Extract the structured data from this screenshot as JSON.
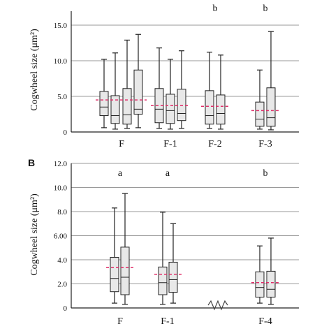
{
  "chart_data": [
    {
      "type": "box",
      "panel_label": "",
      "ylabel": "Cogwheel size (μm²)",
      "ylim": [
        0,
        15
      ],
      "yticks": [
        "0",
        "5.0",
        "10.0",
        "15.0"
      ],
      "grid": true,
      "categories": [
        "F",
        "F-1",
        "F-2",
        "F-3"
      ],
      "significance_letters": [
        "",
        "",
        "b",
        "b"
      ],
      "group_means": [
        4.5,
        3.7,
        3.6,
        3.0
      ],
      "boxes": [
        {
          "group": 0,
          "whisker_low": 0.6,
          "q1": 2.3,
          "median": 3.5,
          "q3": 5.7,
          "whisker_high": 10.2
        },
        {
          "group": 0,
          "whisker_low": 0.4,
          "q1": 1.2,
          "median": 2.3,
          "q3": 5.1,
          "whisker_high": 11.1
        },
        {
          "group": 0,
          "whisker_low": 0.5,
          "q1": 1.1,
          "median": 2.4,
          "q3": 6.1,
          "whisker_high": 12.9
        },
        {
          "group": 0,
          "whisker_low": 0.6,
          "q1": 2.5,
          "median": 3.2,
          "q3": 8.7,
          "whisker_high": 13.7
        },
        {
          "group": 1,
          "whisker_low": 0.5,
          "q1": 1.3,
          "median": 3.2,
          "q3": 6.1,
          "whisker_high": 11.8
        },
        {
          "group": 1,
          "whisker_low": 0.4,
          "q1": 1.2,
          "median": 3.0,
          "q3": 5.3,
          "whisker_high": 10.2
        },
        {
          "group": 1,
          "whisker_low": 0.5,
          "q1": 1.6,
          "median": 2.6,
          "q3": 6.0,
          "whisker_high": 11.4
        },
        {
          "group": 2,
          "whisker_low": 0.5,
          "q1": 1.1,
          "median": 2.3,
          "q3": 5.8,
          "whisker_high": 11.2
        },
        {
          "group": 2,
          "whisker_low": 0.4,
          "q1": 1.1,
          "median": 2.6,
          "q3": 5.2,
          "whisker_high": 10.8
        },
        {
          "group": 3,
          "whisker_low": 0.4,
          "q1": 0.8,
          "median": 1.8,
          "q3": 4.2,
          "whisker_high": 8.7
        },
        {
          "group": 3,
          "whisker_low": 0.3,
          "q1": 0.8,
          "median": 2.0,
          "q3": 6.2,
          "whisker_high": 14.1
        }
      ]
    },
    {
      "type": "box",
      "panel_label": "B",
      "ylabel": "Cogwheel size (μm²)",
      "ylim": [
        0,
        12
      ],
      "yticks": [
        "0",
        "2.0",
        "4.0",
        "6.00",
        "8.0",
        "10.0",
        "12.0"
      ],
      "grid": true,
      "categories": [
        "F",
        "F-1",
        "F-4"
      ],
      "significance_letters": [
        "a",
        "a",
        "b"
      ],
      "group_means": [
        3.35,
        2.8,
        2.1
      ],
      "axis_break_symbol": "zigzag",
      "boxes": [
        {
          "group": 0,
          "whisker_low": 0.4,
          "q1": 1.35,
          "median": 2.45,
          "q3": 4.2,
          "whisker_high": 8.3
        },
        {
          "group": 0,
          "whisker_low": 0.3,
          "q1": 1.1,
          "median": 2.55,
          "q3": 5.05,
          "whisker_high": 9.5
        },
        {
          "group": 1,
          "whisker_low": 0.3,
          "q1": 1.1,
          "median": 2.1,
          "q3": 3.4,
          "whisker_high": 7.95
        },
        {
          "group": 1,
          "whisker_low": 0.4,
          "q1": 1.3,
          "median": 2.35,
          "q3": 3.8,
          "whisker_high": 7.0
        },
        {
          "group": 2,
          "whisker_low": 0.4,
          "q1": 0.9,
          "median": 1.7,
          "q3": 3.0,
          "whisker_high": 5.15
        },
        {
          "group": 2,
          "whisker_low": 0.3,
          "q1": 0.9,
          "median": 1.55,
          "q3": 3.05,
          "whisker_high": 5.8
        }
      ]
    }
  ]
}
